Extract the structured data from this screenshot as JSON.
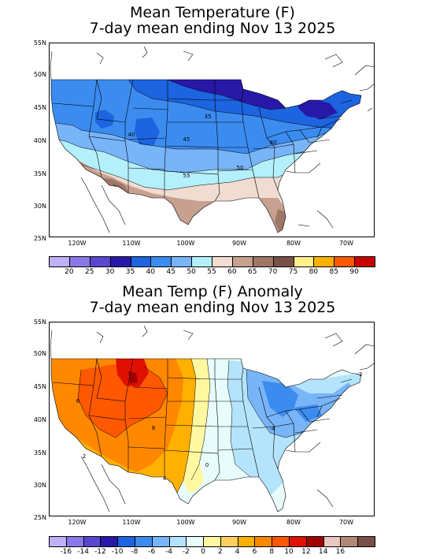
{
  "maps": [
    {
      "id": "mean",
      "title_line1": "Mean Temperature (F)",
      "title_line2": "7-day mean ending Nov 13 2025",
      "lat_labels": [
        "55N",
        "50N",
        "45N",
        "40N",
        "35N",
        "30N",
        "25N"
      ],
      "lon_labels": [
        "120W",
        "110W",
        "100W",
        "90W",
        "80W",
        "70W"
      ],
      "contour_labels": [
        "35",
        "40",
        "45",
        "50",
        "55",
        "40"
      ],
      "legend": {
        "colors": [
          "#c0b0f8",
          "#8878e8",
          "#5848d0",
          "#2818a8",
          "#1c64e0",
          "#3c8cf0",
          "#78b4f8",
          "#b4f0fc",
          "#f0dcd0",
          "#c8a090",
          "#a07868",
          "#785048",
          "#fff08c",
          "#ffb000",
          "#ff5800",
          "#c80000"
        ],
        "labels": [
          "20",
          "25",
          "30",
          "35",
          "40",
          "45",
          "50",
          "55",
          "60",
          "65",
          "70",
          "75",
          "80",
          "85",
          "90"
        ]
      }
    },
    {
      "id": "anomaly",
      "title_line1": "Mean Temp (F) Anomaly",
      "title_line2": "7-day mean ending Nov 13 2025",
      "lat_labels": [
        "55N",
        "50N",
        "45N",
        "40N",
        "35N",
        "30N",
        "25N"
      ],
      "lon_labels": [
        "120W",
        "110W",
        "100W",
        "90W",
        "80W",
        "70W"
      ],
      "contour_labels": [
        "6",
        "8",
        "4",
        "0",
        "-4",
        "-2",
        "2"
      ],
      "legend": {
        "colors": [
          "#c0b0f8",
          "#8878e8",
          "#5848d0",
          "#2818a8",
          "#1c64e0",
          "#3c8cf0",
          "#78b4f8",
          "#b4e4fc",
          "#e8fcfc",
          "#fff8a0",
          "#ffd060",
          "#ffb000",
          "#ff8800",
          "#ff5800",
          "#e01000",
          "#a00000",
          "#e8c8c0",
          "#b08878",
          "#785048"
        ],
        "labels": [
          "-16",
          "-14",
          "-12",
          "-10",
          "-8",
          "-6",
          "-4",
          "-2",
          "0",
          "2",
          "4",
          "6",
          "8",
          "10",
          "12",
          "14",
          "16"
        ]
      }
    }
  ]
}
